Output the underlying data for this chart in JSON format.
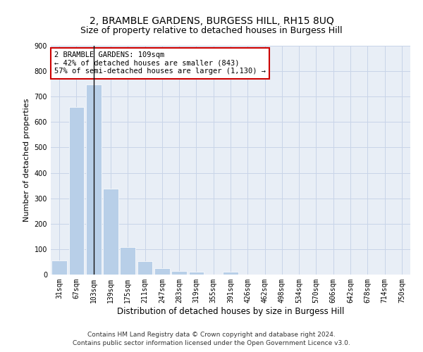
{
  "title": "2, BRAMBLE GARDENS, BURGESS HILL, RH15 8UQ",
  "subtitle": "Size of property relative to detached houses in Burgess Hill",
  "xlabel": "Distribution of detached houses by size in Burgess Hill",
  "ylabel": "Number of detached properties",
  "categories": [
    "31sqm",
    "67sqm",
    "103sqm",
    "139sqm",
    "175sqm",
    "211sqm",
    "247sqm",
    "283sqm",
    "319sqm",
    "355sqm",
    "391sqm",
    "426sqm",
    "462sqm",
    "498sqm",
    "534sqm",
    "570sqm",
    "606sqm",
    "642sqm",
    "678sqm",
    "714sqm",
    "750sqm"
  ],
  "values": [
    55,
    660,
    748,
    338,
    107,
    53,
    25,
    15,
    11,
    0,
    10,
    0,
    0,
    0,
    0,
    0,
    0,
    0,
    0,
    0,
    0
  ],
  "bar_color": "#b8cfe8",
  "vline_x": 2,
  "vline_color": "#111111",
  "annotation_text_line1": "2 BRAMBLE GARDENS: 109sqm",
  "annotation_text_line2": "← 42% of detached houses are smaller (843)",
  "annotation_text_line3": "57% of semi-detached houses are larger (1,130) →",
  "annotation_box_color": "#cc0000",
  "ylim": [
    0,
    900
  ],
  "yticks": [
    0,
    100,
    200,
    300,
    400,
    500,
    600,
    700,
    800,
    900
  ],
  "grid_color": "#c8d4e8",
  "background_color": "#e8eef6",
  "footer_line1": "Contains HM Land Registry data © Crown copyright and database right 2024.",
  "footer_line2": "Contains public sector information licensed under the Open Government Licence v3.0.",
  "title_fontsize": 10,
  "subtitle_fontsize": 9,
  "xlabel_fontsize": 8.5,
  "ylabel_fontsize": 8,
  "tick_fontsize": 7,
  "footer_fontsize": 6.5,
  "annotation_fontsize": 7.5
}
